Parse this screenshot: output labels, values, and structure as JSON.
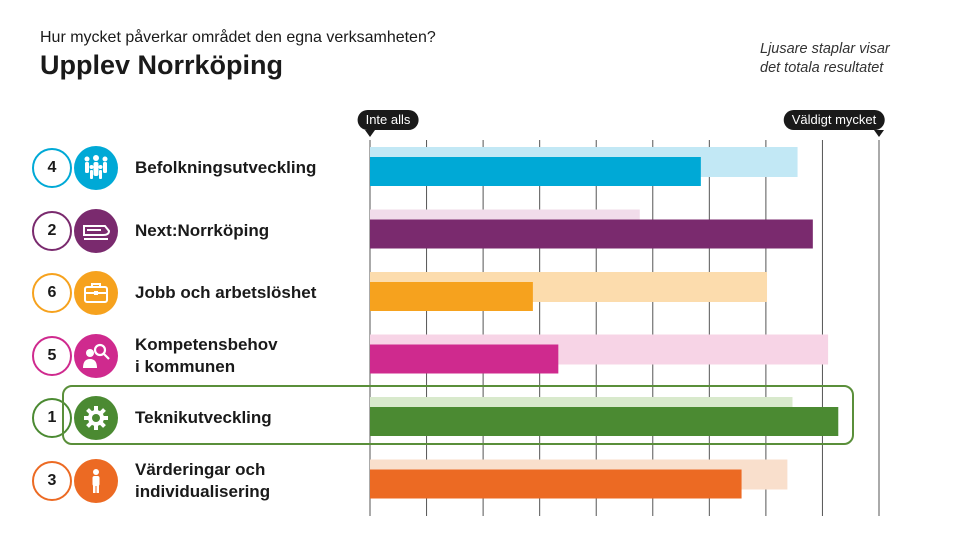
{
  "header": {
    "question": "Hur mycket påverkar området den egna verksamheten?",
    "title": "Upplev Norrköping",
    "note": "Ljusare staplar visar\ndet totala resultatet"
  },
  "chart_data": {
    "type": "bar",
    "orientation": "horizontal",
    "scale_min_label": "Inte alls",
    "scale_max_label": "Väldigt mycket",
    "xlim": [
      0,
      100
    ],
    "grid": true,
    "categories": [
      {
        "rank": "4",
        "label": "Befolkningsutveckling",
        "icon": "people-icon",
        "color": "#00a9d6",
        "light_color": "#c2e8f5",
        "value": 65,
        "total": 84
      },
      {
        "rank": "2",
        "label": "Next:Norrköping",
        "icon": "train-icon",
        "color": "#7a2a6e",
        "light_color": "#f1dcea",
        "value": 87,
        "total": 53
      },
      {
        "rank": "6",
        "label": "Jobb och arbetslöshet",
        "icon": "briefcase-icon",
        "color": "#f6a21e",
        "light_color": "#fcdcad",
        "value": 32,
        "total": 78
      },
      {
        "rank": "5",
        "label": "Kompetensbehov\ni kommunen",
        "icon": "person-search-icon",
        "color": "#cf2a8e",
        "light_color": "#f7d4e6",
        "value": 37,
        "total": 90
      },
      {
        "rank": "1",
        "label": "Teknikutveckling",
        "icon": "gear-icon",
        "color": "#4b8a32",
        "light_color": "#d8e9cc",
        "value": 92,
        "total": 83
      },
      {
        "rank": "3",
        "label": "Värderingar och\nindividualisering",
        "icon": "person-icon",
        "color": "#ec6a23",
        "light_color": "#f9dfcc",
        "value": 73,
        "total": 82
      }
    ],
    "highlighted_rank": "1"
  }
}
